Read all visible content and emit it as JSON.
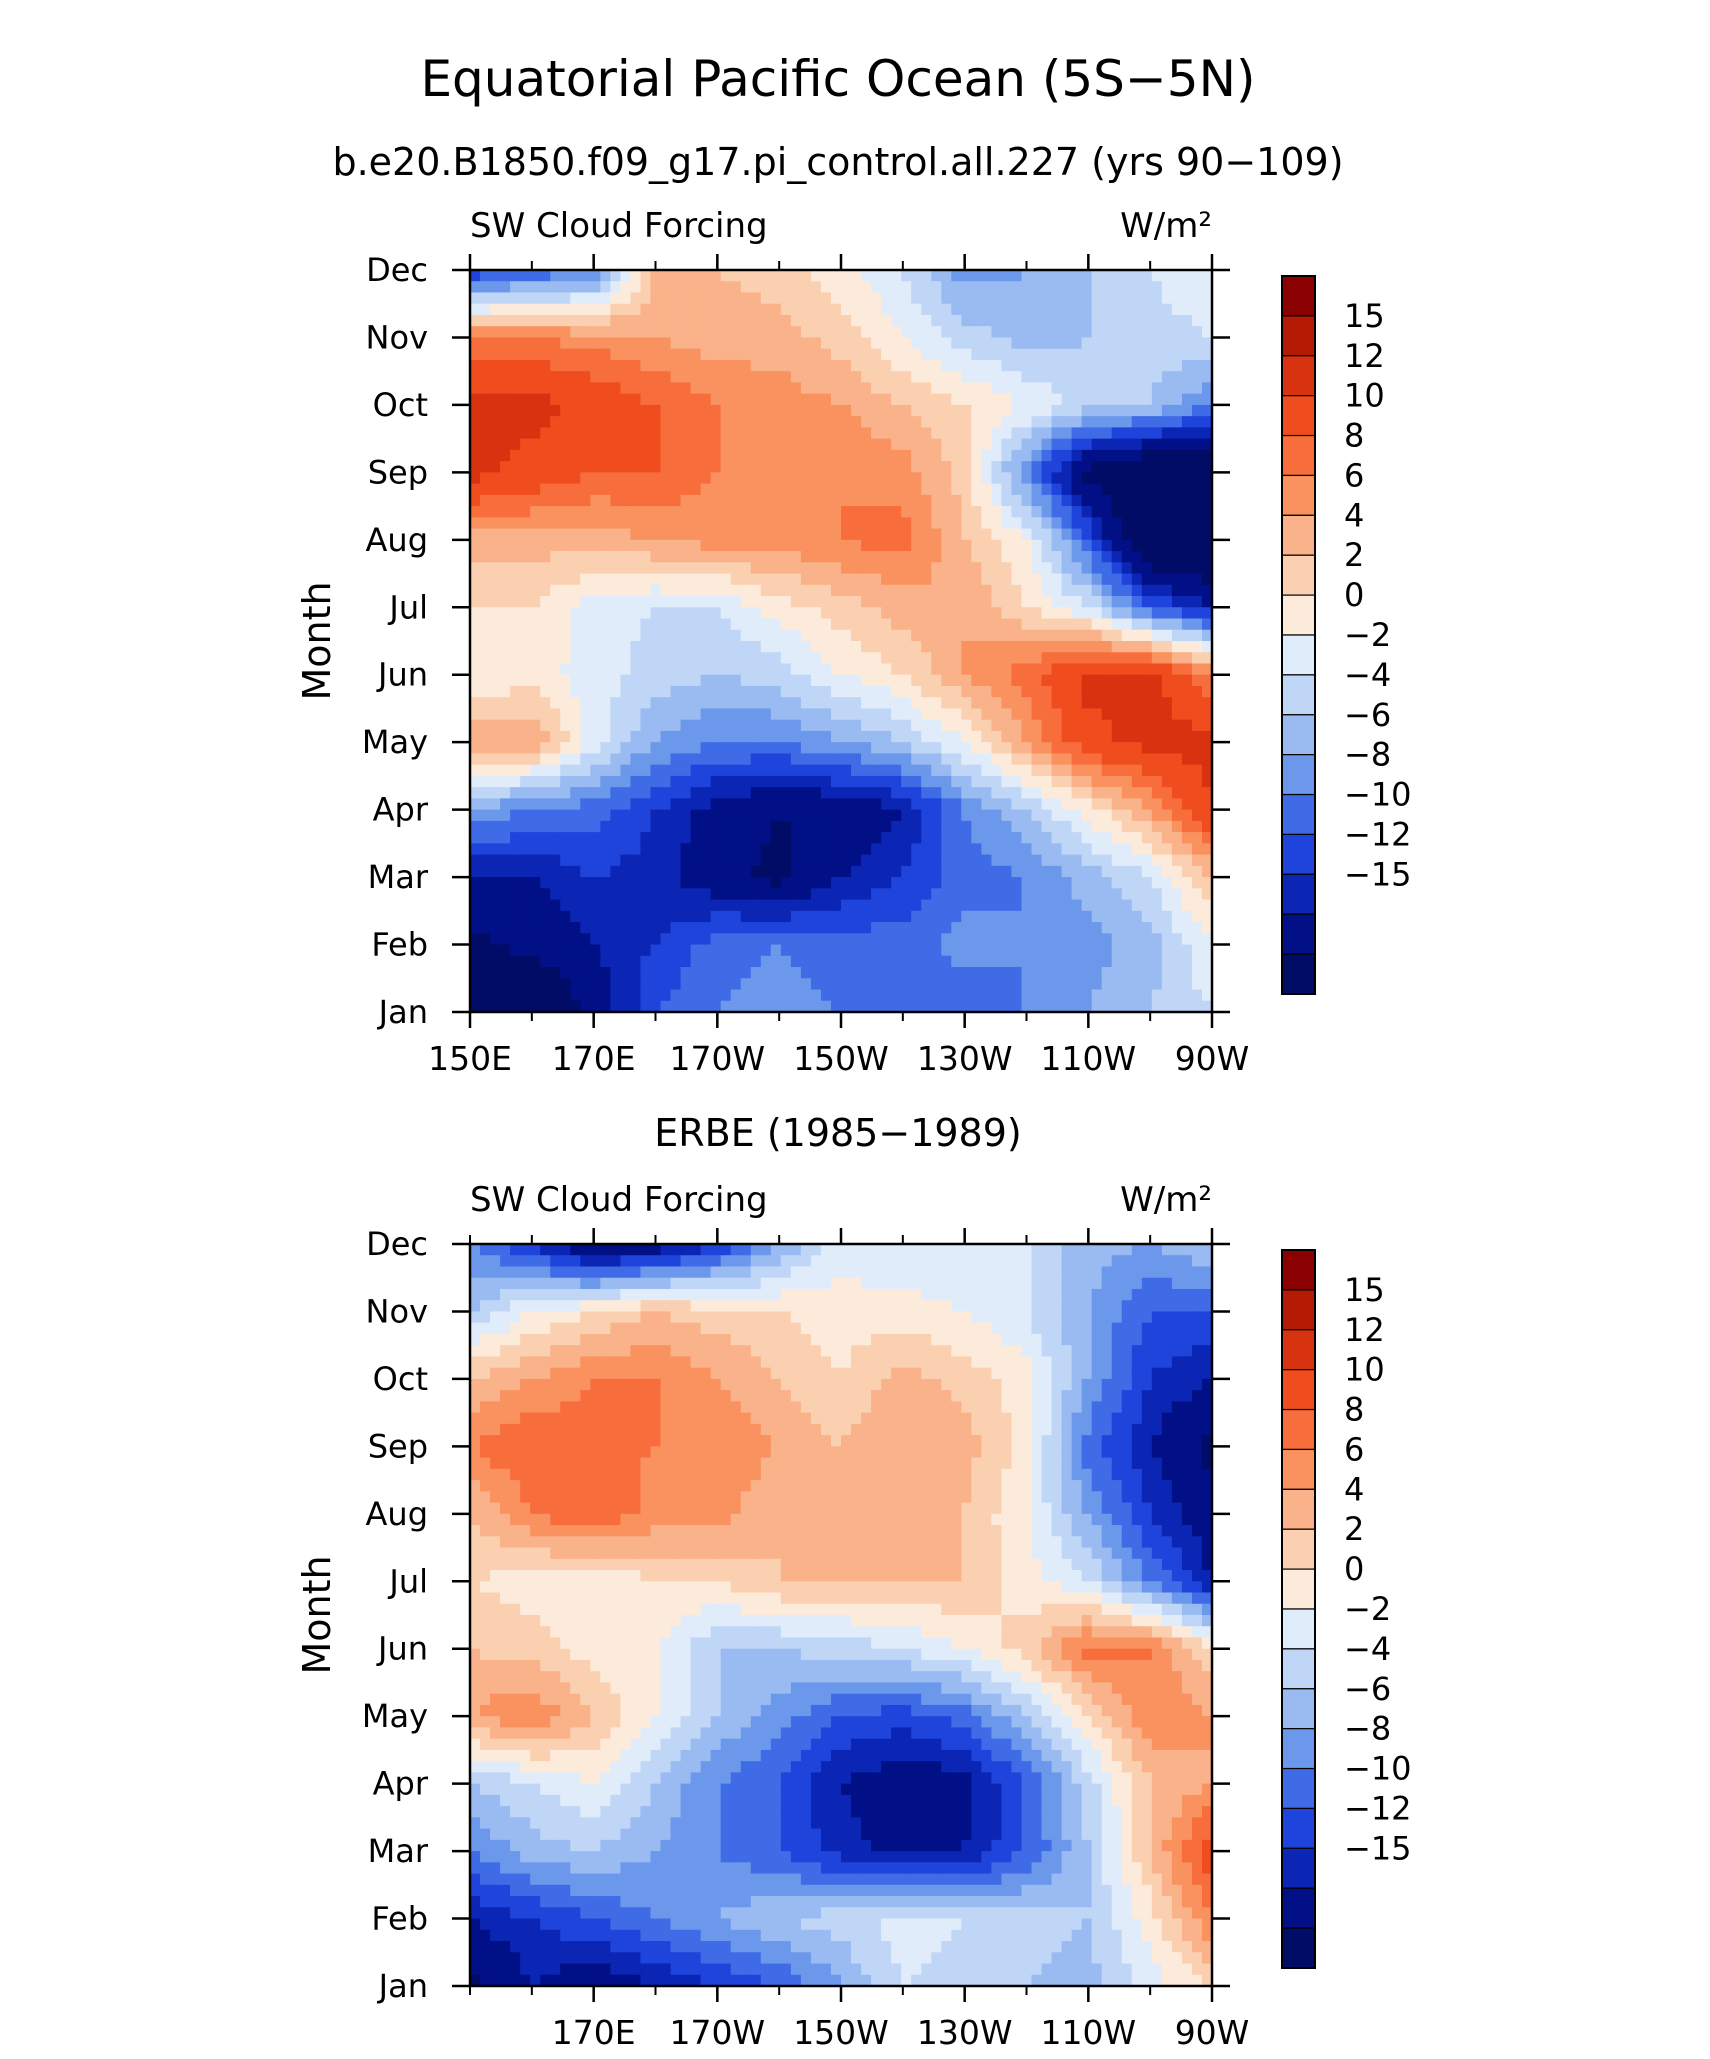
{
  "figure": {
    "title": "Equatorial Pacific Ocean (5S−5N)",
    "subtitle": "b.e20.B1850.f09_g17.pi_control.all.227 (yrs 90−109)"
  },
  "colorbar": {
    "labels": [
      "15",
      "12",
      "10",
      "8",
      "6",
      "4",
      "2",
      "0",
      "−2",
      "−4",
      "−6",
      "−8",
      "−10",
      "−12",
      "−15"
    ],
    "colors": [
      "#8b0000",
      "#b51a05",
      "#d73310",
      "#f04d1e",
      "#f76e3c",
      "#f9925f",
      "#f9b289",
      "#fbd0b0",
      "#fcebdb",
      "#e1ecfb",
      "#c0d6f7",
      "#99bbf2",
      "#6c98ec",
      "#3f6be6",
      "#1e44dc",
      "#0b25b4",
      "#011086",
      "#000c66"
    ]
  },
  "chart_data": [
    {
      "type": "heatmap",
      "title": "b.e20.B1850.f09_g17.pi_control.all.227 (yrs 90−109)",
      "left_string": "SW Cloud Forcing",
      "units": "W/m²",
      "ylabel": "Month",
      "x_tick_labels": [
        "150E",
        "170E",
        "170W",
        "150W",
        "130W",
        "110W",
        "90W"
      ],
      "x_ticks_lon": [
        150,
        170,
        190,
        210,
        230,
        250,
        270
      ],
      "xlim": [
        150,
        270
      ],
      "y_tick_labels": [
        "Jan",
        "Feb",
        "Mar",
        "Apr",
        "May",
        "Jun",
        "Jul",
        "Aug",
        "Sep",
        "Oct",
        "Nov",
        "Dec"
      ],
      "contour_levels": [
        -15,
        -12,
        -10,
        -8,
        -6,
        -4,
        -2,
        0,
        2,
        4,
        6,
        8,
        10,
        12,
        15
      ],
      "lon": [
        150,
        160,
        170,
        180,
        190,
        200,
        210,
        220,
        230,
        240,
        250,
        260,
        270
      ],
      "z": [
        [
          -20,
          -20,
          -14,
          -8,
          -6,
          -5,
          -6,
          -7,
          -8,
          -6,
          -4,
          -2,
          0
        ],
        [
          -16,
          -14,
          -12,
          -10,
          -7,
          -6,
          -7,
          -7,
          -5,
          -6,
          -5,
          -3,
          2
        ],
        [
          -12,
          -12,
          -10,
          -11,
          -14,
          -16,
          -12,
          -10,
          -7,
          -6,
          -3,
          0,
          6
        ],
        [
          -4,
          -6,
          -7,
          -10,
          -13,
          -15,
          -14,
          -12,
          -6,
          -2,
          3,
          8,
          15
        ],
        [
          8,
          8,
          1,
          -4,
          -6,
          -6,
          -4,
          -2,
          2,
          8,
          14,
          16,
          16
        ],
        [
          2,
          3,
          1,
          -1,
          -2,
          -1,
          2,
          4,
          8,
          11,
          16,
          16,
          10
        ],
        [
          4,
          4,
          1,
          0,
          0,
          3,
          5,
          7,
          8,
          4,
          0,
          -8,
          -12
        ],
        [
          7,
          7,
          7,
          8,
          9,
          9,
          10,
          11,
          6,
          2,
          -8,
          -20,
          -20
        ],
        [
          16,
          14,
          12,
          12,
          10,
          9,
          10,
          9,
          5,
          -6,
          -16,
          -20,
          -20
        ],
        [
          16,
          16,
          14,
          12,
          10,
          9,
          8,
          6,
          4,
          2,
          -1,
          -2,
          -6
        ],
        [
          10,
          10,
          9,
          8,
          7,
          7,
          5,
          2,
          -1,
          -3,
          -2,
          -1,
          0
        ],
        [
          -10,
          -8,
          -6,
          6,
          6,
          5,
          3,
          0,
          -5,
          -4,
          -2,
          0,
          2
        ]
      ]
    },
    {
      "type": "heatmap",
      "title": "ERBE (1985−1989)",
      "left_string": "SW Cloud Forcing",
      "units": "W/m²",
      "ylabel": "Month",
      "x_tick_labels": [
        "170E",
        "170W",
        "150W",
        "130W",
        "110W",
        "90W"
      ],
      "x_ticks_lon": [
        170,
        190,
        210,
        230,
        250,
        270
      ],
      "xlim": [
        150,
        270
      ],
      "y_tick_labels": [
        "Jan",
        "Feb",
        "Mar",
        "Apr",
        "May",
        "Jun",
        "Jul",
        "Aug",
        "Sep",
        "Oct",
        "Nov",
        "Dec"
      ],
      "contour_levels": [
        -15,
        -12,
        -10,
        -8,
        -6,
        -4,
        -2,
        0,
        2,
        4,
        6,
        8,
        10,
        12,
        15
      ],
      "lon": [
        150,
        160,
        170,
        180,
        190,
        200,
        210,
        220,
        230,
        240,
        250,
        260,
        270
      ],
      "z": [
        [
          -16,
          -12,
          -14,
          -12,
          -10,
          -8,
          -4,
          0,
          -1,
          -2,
          -3,
          1,
          4
        ],
        [
          -12,
          -10,
          -8,
          -6,
          -4,
          -2,
          -1,
          1,
          0,
          -1,
          -2,
          3,
          10
        ],
        [
          -6,
          -3,
          -2,
          -4,
          -6,
          -8,
          -11,
          -13,
          -12,
          -8,
          -2,
          6,
          14
        ],
        [
          -2,
          0,
          2,
          -2,
          -6,
          -8,
          -12,
          -14,
          -13,
          -8,
          -1,
          6,
          8
        ],
        [
          8,
          10,
          6,
          2,
          -2,
          -5,
          -8,
          -9,
          -7,
          -2,
          4,
          10,
          8
        ],
        [
          6,
          5,
          3,
          2,
          -2,
          -2,
          -1,
          0,
          2,
          5,
          11,
          10,
          4
        ],
        [
          4,
          3,
          2,
          4,
          4,
          6,
          6,
          6,
          6,
          3,
          0,
          -6,
          -12
        ],
        [
          6,
          10,
          12,
          9,
          9,
          6,
          6,
          8,
          6,
          2,
          -4,
          -10,
          -14
        ],
        [
          10,
          12,
          11,
          10,
          10,
          8,
          6,
          8,
          7,
          3,
          -7,
          -12,
          -16
        ],
        [
          6,
          8,
          10,
          10,
          8,
          6,
          4,
          7,
          5,
          3,
          -4,
          -10,
          -12
        ],
        [
          -2,
          2,
          4,
          6,
          5,
          4,
          3,
          3,
          2,
          0,
          -4,
          -8,
          -8
        ],
        [
          -6,
          -10,
          -16,
          -14,
          -10,
          -4,
          1,
          0,
          0,
          0,
          -3,
          -4,
          -2
        ]
      ]
    }
  ]
}
